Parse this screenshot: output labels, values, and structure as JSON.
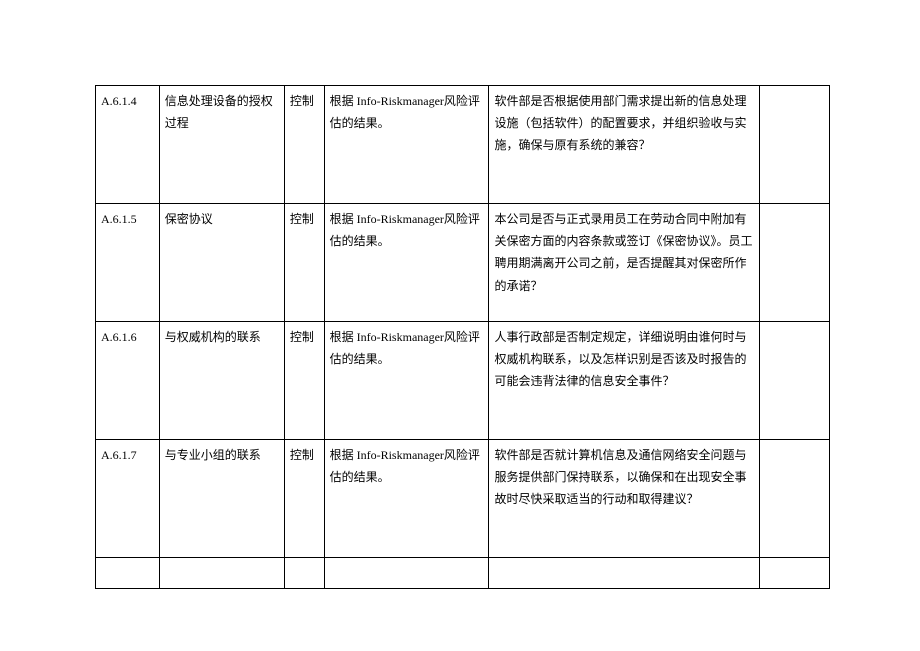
{
  "rows": [
    {
      "id": "A.6.1.4",
      "title": "信息处理设备的授权过程",
      "type": "控制",
      "basis": "根据 Info-Riskmanager风险评估的结果。",
      "question": "软件部是否根据使用部门需求提出新的信息处理设施（包括软件）的配置要求，并组织验收与实施，确保与原有系统的兼容？"
    },
    {
      "id": "A.6.1.5",
      "title": "保密协议",
      "type": "控制",
      "basis": "根据 Info-Riskmanager风险评估的结果。",
      "question": "本公司是否与正式录用员工在劳动合同中附加有关保密方面的内容条款或签订《保密协议》。员工聘用期满离开公司之前，是否提醒其对保密所作的承诺？"
    },
    {
      "id": "A.6.1.6",
      "title": "与权威机构的联系",
      "type": "控制",
      "basis": "根据 Info-Riskmanager风险评估的结果。",
      "question": "人事行政部是否制定规定，详细说明由谁何时与权威机构联系，以及怎样识别是否该及时报告的可能会违背法律的信息安全事件？"
    },
    {
      "id": "A.6.1.7",
      "title": "与专业小组的联系",
      "type": "控制",
      "basis": "根据 Info-Riskmanager风险评估的结果。",
      "question": "软件部是否就计算机信息及通信网络安全问题与服务提供部门保持联系，以确保和在出现安全事故时尽快采取适当的行动和取得建议？"
    }
  ]
}
